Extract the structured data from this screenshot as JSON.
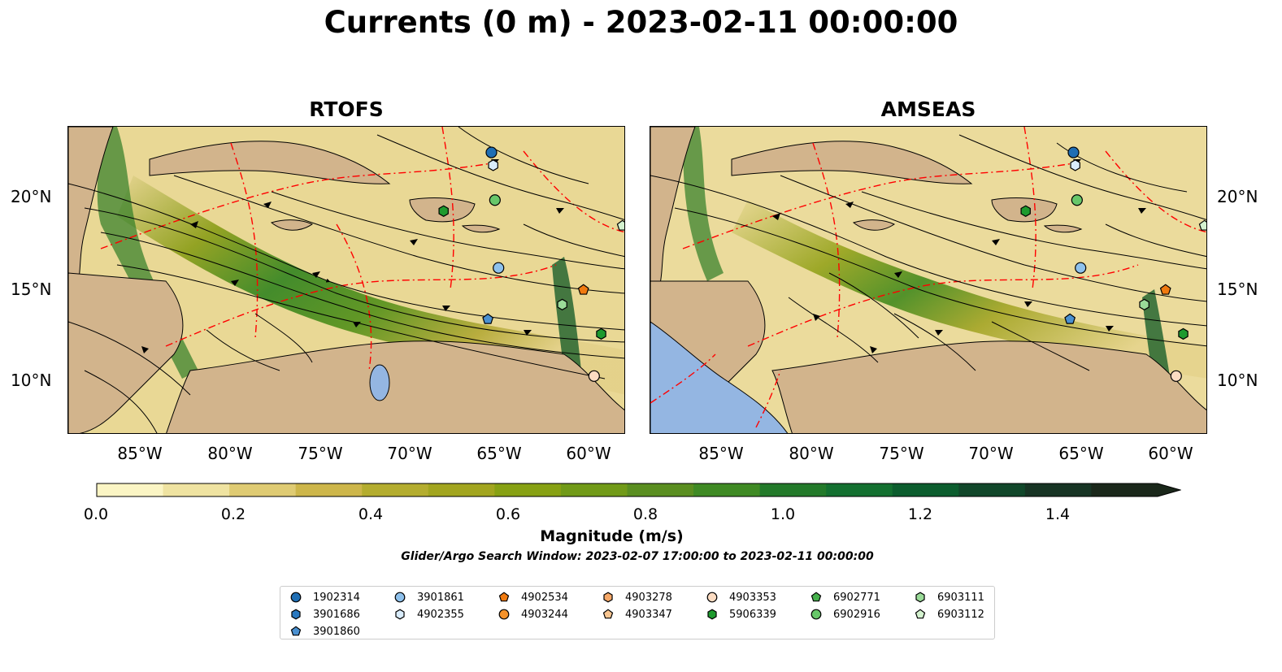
{
  "title": "Currents (0 m) - 2023-02-11 00:00:00",
  "panels": [
    {
      "title": "RTOFS"
    },
    {
      "title": "AMSEAS"
    }
  ],
  "lon_ticks": [
    "85°W",
    "80°W",
    "75°W",
    "70°W",
    "65°W",
    "60°W"
  ],
  "lat_ticks": [
    "20°N",
    "15°N",
    "10°N"
  ],
  "colorbar": {
    "label": "Magnitude (m/s)",
    "ticks": [
      "0.0",
      "0.2",
      "0.4",
      "0.6",
      "0.8",
      "1.0",
      "1.2",
      "1.4"
    ],
    "range": [
      0.0,
      1.6
    ],
    "extend": "max",
    "colors": [
      "#fbf5c4",
      "#efe3a1",
      "#dfcb73",
      "#cdb64a",
      "#b4ad2f",
      "#a2a51f",
      "#87a113",
      "#719a18",
      "#5a8e20",
      "#3f8a24",
      "#237a2a",
      "#137030",
      "#0c5d2e",
      "#11472a",
      "#173424",
      "#1a271a"
    ]
  },
  "search_window": "Glider/Argo Search Window: 2023-02-07 17:00:00 to 2023-02-11 00:00:00",
  "colors": {
    "land": "#d2b48c",
    "pacific": "#94b6e2",
    "eez_boundary": "#ff0000"
  },
  "legend": [
    {
      "id": "1902314",
      "marker": "circle",
      "color": "#1f6eb4"
    },
    {
      "id": "3901686",
      "marker": "hexagon",
      "color": "#2a79c0"
    },
    {
      "id": "3901860",
      "marker": "pentagon",
      "color": "#4a90d0"
    },
    {
      "id": "3901861",
      "marker": "circle",
      "color": "#8ec1ec"
    },
    {
      "id": "4902355",
      "marker": "hexagon",
      "color": "#d9ecfb"
    },
    {
      "id": "4902534",
      "marker": "pentagon",
      "color": "#f07a10"
    },
    {
      "id": "4903244",
      "marker": "circle",
      "color": "#f5922a"
    },
    {
      "id": "4903278",
      "marker": "hexagon",
      "color": "#f6a868"
    },
    {
      "id": "4903347",
      "marker": "pentagon",
      "color": "#f8c590"
    },
    {
      "id": "4903353",
      "marker": "circle",
      "color": "#fcdcc2"
    },
    {
      "id": "5906339",
      "marker": "hexagon",
      "color": "#1e9a2e"
    },
    {
      "id": "6902771",
      "marker": "pentagon",
      "color": "#45b04c"
    },
    {
      "id": "6902916",
      "marker": "circle",
      "color": "#68c76a"
    },
    {
      "id": "6903111",
      "marker": "hexagon",
      "color": "#9adb98"
    },
    {
      "id": "6903112",
      "marker": "pentagon",
      "color": "#d4f2cf"
    }
  ],
  "floats_on_map": [
    {
      "id": "1902314",
      "lon": -65.6,
      "lat": 22.4
    },
    {
      "id": "4902355",
      "lon": -65.5,
      "lat": 21.7
    },
    {
      "id": "6902916",
      "lon": -65.4,
      "lat": 19.8
    },
    {
      "id": "5906339",
      "lon": -68.3,
      "lat": 19.2
    },
    {
      "id": "6903112",
      "lon": -58.2,
      "lat": 18.4
    },
    {
      "id": "3901861",
      "lon": -65.2,
      "lat": 16.1
    },
    {
      "id": "4902534",
      "lon": -60.4,
      "lat": 14.9
    },
    {
      "id": "6903111",
      "lon": -61.6,
      "lat": 14.1
    },
    {
      "id": "3901860",
      "lon": -65.8,
      "lat": 13.3
    },
    {
      "id": "5906339",
      "lon": -59.4,
      "lat": 12.5
    },
    {
      "id": "4903353",
      "lon": -59.8,
      "lat": 10.2
    }
  ],
  "map_extent": {
    "lon": [
      -89.5,
      -58.0
    ],
    "lat": [
      7.0,
      23.8
    ]
  }
}
